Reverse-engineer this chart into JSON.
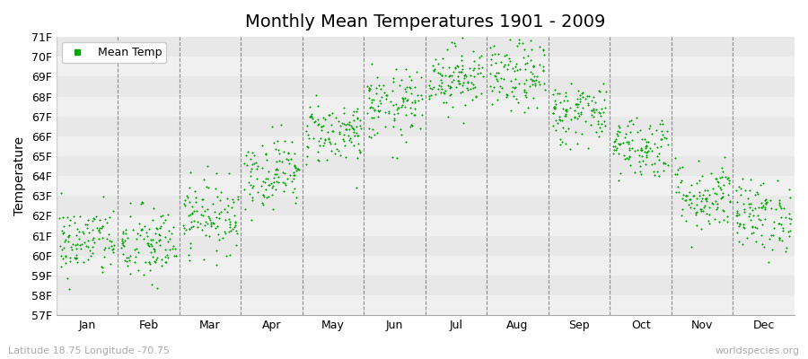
{
  "title": "Monthly Mean Temperatures 1901 - 2009",
  "ylabel": "Temperature",
  "xlabel_labels": [
    "Jan",
    "Feb",
    "Mar",
    "Apr",
    "May",
    "Jun",
    "Jul",
    "Aug",
    "Sep",
    "Oct",
    "Nov",
    "Dec"
  ],
  "ytick_labels": [
    "57F",
    "58F",
    "59F",
    "60F",
    "61F",
    "62F",
    "63F",
    "64F",
    "65F",
    "66F",
    "67F",
    "68F",
    "69F",
    "70F",
    "71F"
  ],
  "ytick_values": [
    57,
    58,
    59,
    60,
    61,
    62,
    63,
    64,
    65,
    66,
    67,
    68,
    69,
    70,
    71
  ],
  "ylim": [
    57,
    71
  ],
  "dot_color": "#00AA00",
  "bg_color": "#ffffff",
  "plot_bg_color": "#ffffff",
  "band_color_light": "#f0f0f0",
  "band_color_dark": "#e8e8e8",
  "dashed_line_color": "#666666",
  "title_fontsize": 14,
  "axis_label_fontsize": 10,
  "tick_fontsize": 9,
  "legend_label": "Mean Temp",
  "footer_left": "Latitude 18.75 Longitude -70.75",
  "footer_right": "worldspecies.org",
  "num_years": 109,
  "monthly_means": [
    60.7,
    60.5,
    62.0,
    64.2,
    66.2,
    67.5,
    69.0,
    69.0,
    67.2,
    65.5,
    63.0,
    62.0
  ],
  "monthly_stds": [
    0.9,
    1.0,
    0.9,
    0.9,
    0.8,
    0.9,
    0.8,
    0.9,
    0.8,
    0.8,
    0.9,
    0.9
  ],
  "seed": 42
}
